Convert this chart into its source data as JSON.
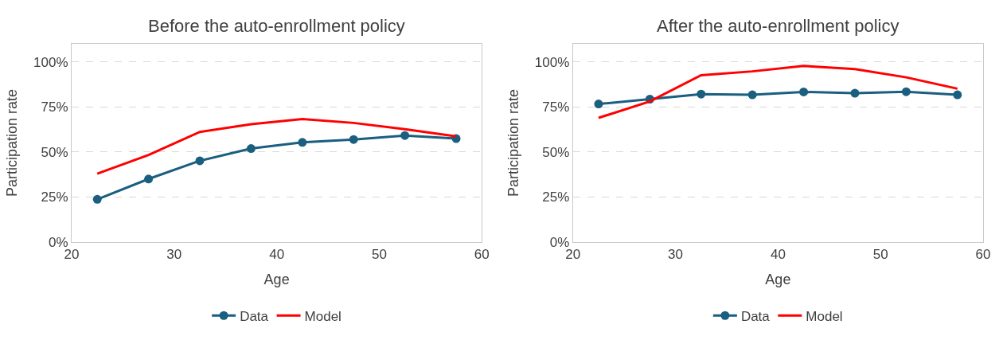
{
  "chart_data": [
    {
      "type": "line",
      "title": "Before the auto-enrollment policy",
      "xlabel": "Age",
      "ylabel": "Participation rate",
      "x": [
        22.5,
        27.5,
        32.5,
        37.5,
        42.5,
        47.5,
        52.5,
        57.5
      ],
      "xlim": [
        20,
        60
      ],
      "xticks": [
        20,
        30,
        40,
        50,
        60
      ],
      "ylim": [
        0,
        110
      ],
      "yticks": [
        {
          "value": 0,
          "label": "0%"
        },
        {
          "value": 25,
          "label": "25%"
        },
        {
          "value": 50,
          "label": "50%"
        },
        {
          "value": 75,
          "label": "75%"
        },
        {
          "value": 100,
          "label": "100%"
        }
      ],
      "grid": "y",
      "legend": "bottom",
      "series": [
        {
          "name": "Data",
          "color": "#1a5e80",
          "marker": "circle",
          "values": [
            23.7,
            35,
            45.1,
            51.9,
            55.3,
            56.9,
            59.1,
            57.4
          ]
        },
        {
          "name": "Model",
          "color": "#ff0000",
          "marker": "none",
          "values": [
            37.9,
            48.3,
            61.1,
            65.4,
            68.3,
            66.1,
            62.6,
            58.6
          ]
        }
      ]
    },
    {
      "type": "line",
      "title": "After the auto-enrollment policy",
      "xlabel": "Age",
      "ylabel": "Participation rate",
      "x": [
        22.5,
        27.5,
        32.5,
        37.5,
        42.5,
        47.5,
        52.5,
        57.5
      ],
      "xlim": [
        20,
        60
      ],
      "xticks": [
        20,
        30,
        40,
        50,
        60
      ],
      "ylim": [
        0,
        110
      ],
      "yticks": [
        {
          "value": 0,
          "label": "0%"
        },
        {
          "value": 25,
          "label": "25%"
        },
        {
          "value": 50,
          "label": "50%"
        },
        {
          "value": 75,
          "label": "75%"
        },
        {
          "value": 100,
          "label": "100%"
        }
      ],
      "grid": "y",
      "legend": "bottom",
      "series": [
        {
          "name": "Data",
          "color": "#1a5e80",
          "marker": "circle",
          "values": [
            76.6,
            79.3,
            82.1,
            81.7,
            83.3,
            82.6,
            83.4,
            81.7
          ]
        },
        {
          "name": "Model",
          "color": "#ff0000",
          "marker": "none",
          "values": [
            68.9,
            78,
            92.6,
            94.7,
            97.7,
            96,
            91.4,
            85.1
          ]
        }
      ]
    }
  ]
}
